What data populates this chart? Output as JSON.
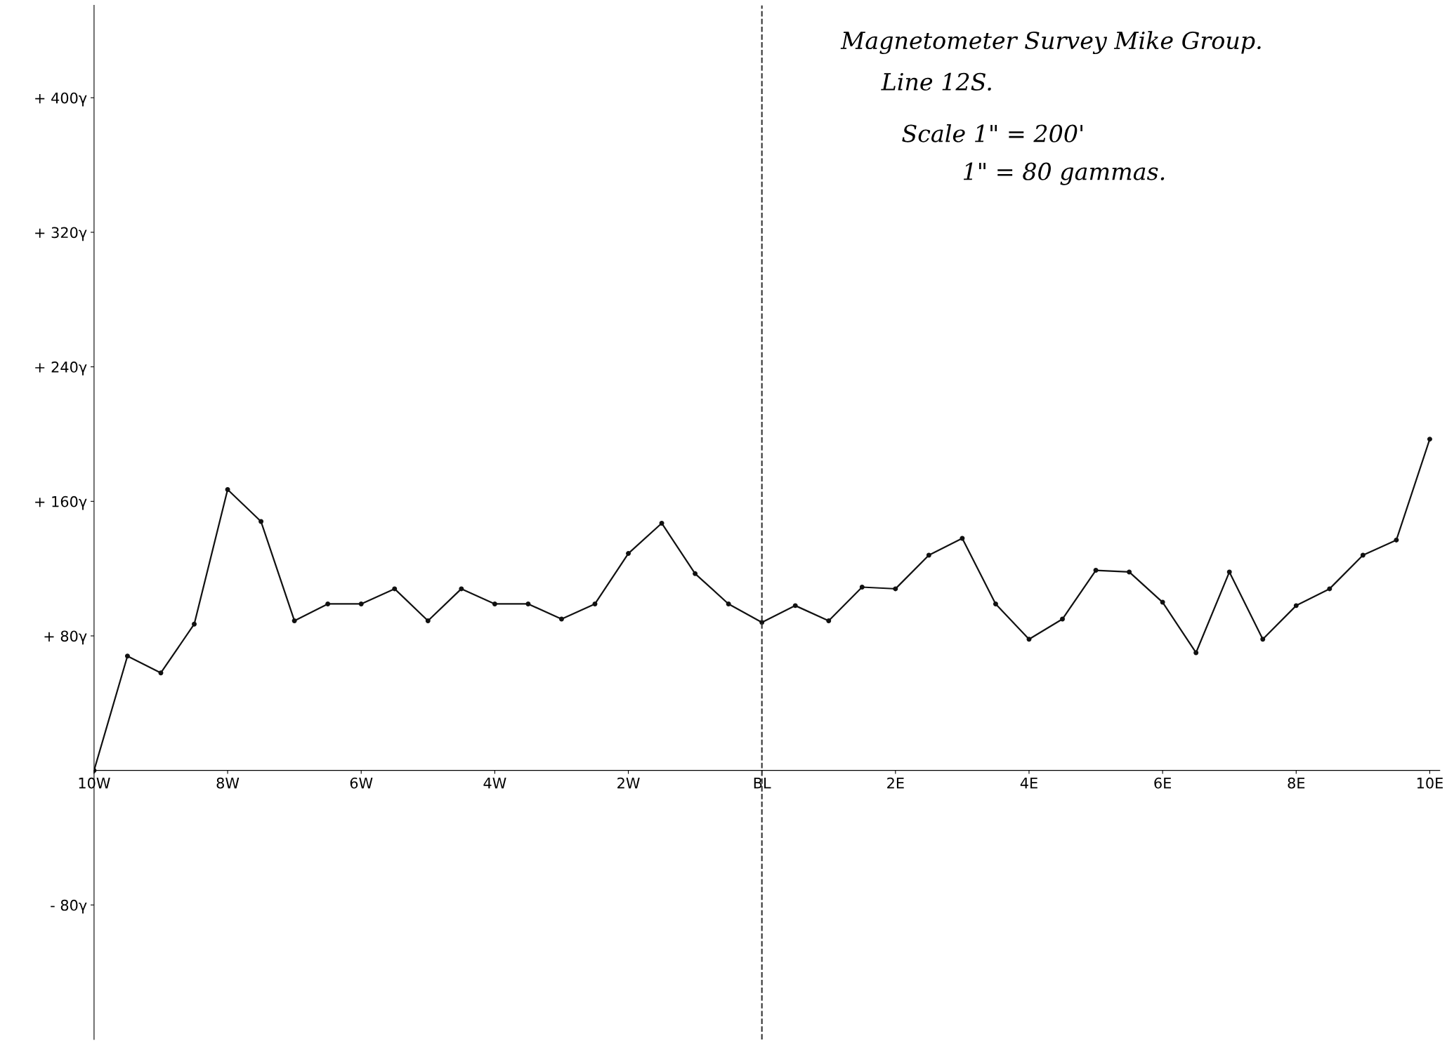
{
  "chart_data": {
    "type": "line",
    "x": [
      -10,
      -9.5,
      -9,
      -8.5,
      -8,
      -7.5,
      -7,
      -6.5,
      -6,
      -5.5,
      -5,
      -4.5,
      -4,
      -3.5,
      -3,
      -2.5,
      -2,
      -1.5,
      -1,
      -0.5,
      0,
      0.5,
      1,
      1.5,
      2,
      2.5,
      3,
      3.5,
      4,
      4.5,
      5,
      5.5,
      6,
      6.5,
      7,
      7.5,
      8,
      8.5,
      9,
      9.5,
      10
    ],
    "series": [
      {
        "color": "#111111",
        "values": [
          0,
          68,
          58,
          87,
          167,
          148,
          89,
          99,
          99,
          108,
          89,
          108,
          99,
          99,
          90,
          99,
          129,
          147,
          117,
          99,
          88,
          98,
          89,
          109,
          108,
          128,
          138,
          99,
          78,
          90,
          119,
          118,
          100,
          70,
          118,
          78,
          98,
          108,
          128,
          137,
          197
        ]
      }
    ],
    "xlim": [
      -10,
      10.15
    ],
    "ylim": [
      -160,
      455
    ],
    "xticks": [
      {
        "value": -10,
        "label": "10W"
      },
      {
        "value": -8,
        "label": "8W"
      },
      {
        "value": -6,
        "label": "6W"
      },
      {
        "value": -4,
        "label": "4W"
      },
      {
        "value": -2,
        "label": "2W"
      },
      {
        "value": 0,
        "label": "BL"
      },
      {
        "value": 2,
        "label": "2E"
      },
      {
        "value": 4,
        "label": "4E"
      },
      {
        "value": 6,
        "label": "6E"
      },
      {
        "value": 8,
        "label": "8E"
      },
      {
        "value": 10,
        "label": "10E"
      }
    ],
    "yticks": [
      {
        "value": -80,
        "label": "- 80γ"
      },
      {
        "value": 80,
        "label": "+ 80γ"
      },
      {
        "value": 160,
        "label": "+ 160γ"
      },
      {
        "value": 240,
        "label": "+ 240γ"
      },
      {
        "value": 320,
        "label": "+ 320γ"
      },
      {
        "value": 400,
        "label": "+ 400γ"
      }
    ],
    "ref_lines": [
      {
        "axis": "x",
        "value": 0,
        "line_style": "dashed",
        "color": "#333333"
      }
    ],
    "annotations": [
      "Magnetometer Survey Mike Group.",
      "Line 12S.",
      "Scale 1\" = 200'",
      "1\" = 80 gammas."
    ],
    "marker": "circle",
    "line_style": "solid",
    "grid": false,
    "legend": false
  }
}
